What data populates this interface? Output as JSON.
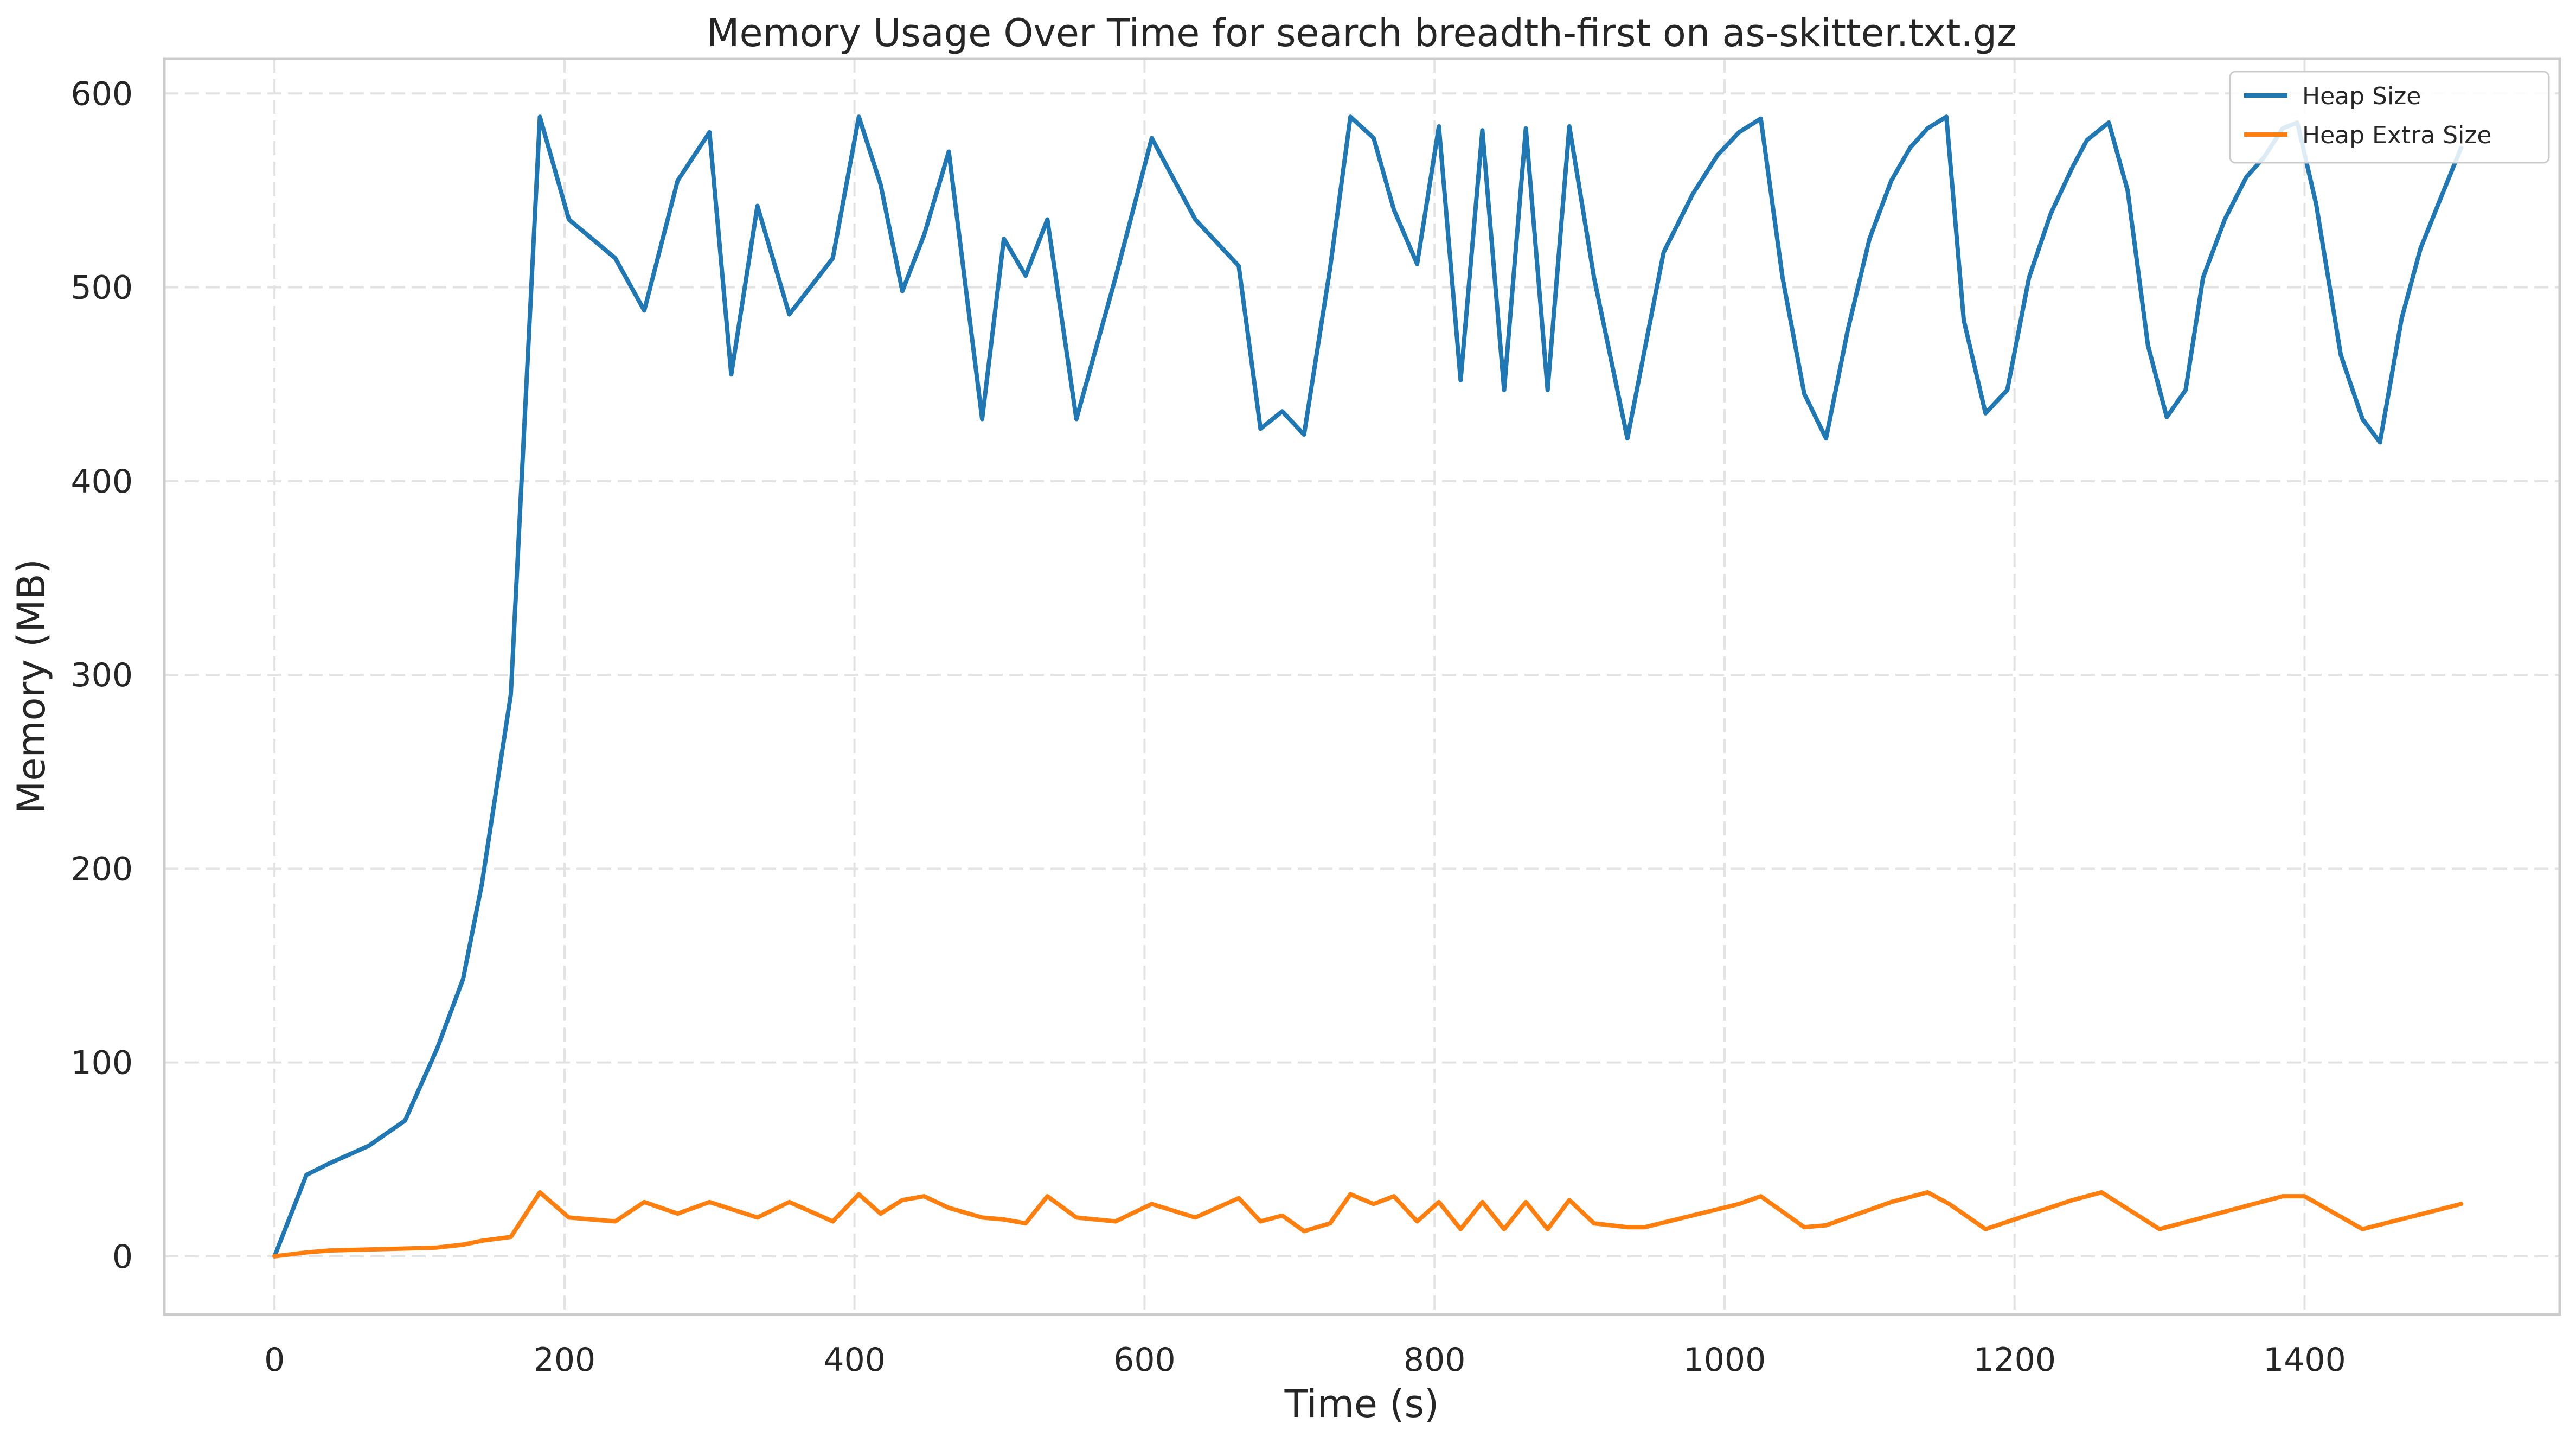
{
  "chart_data": {
    "type": "line",
    "title": "Memory Usage Over Time for search breadth-first on as-skitter.txt.gz",
    "xlabel": "Time (s)",
    "ylabel": "Memory (MB)",
    "xlim": [
      -76,
      1576
    ],
    "ylim": [
      -30,
      618
    ],
    "xticks": [
      0,
      200,
      400,
      600,
      800,
      1000,
      1200,
      1400
    ],
    "yticks": [
      0,
      100,
      200,
      300,
      400,
      500,
      600
    ],
    "grid": true,
    "legend_position": "top-right",
    "series": [
      {
        "name": "Heap Size",
        "color": "#1f77b4",
        "x": [
          0,
          22,
          38,
          65,
          90,
          112,
          130,
          143,
          163,
          183,
          203,
          235,
          255,
          278,
          300,
          315,
          333,
          355,
          385,
          403,
          418,
          433,
          448,
          465,
          488,
          503,
          518,
          533,
          553,
          580,
          605,
          635,
          665,
          680,
          695,
          710,
          728,
          742,
          758,
          772,
          788,
          803,
          818,
          833,
          848,
          863,
          878,
          893,
          910,
          933,
          958,
          978,
          995,
          1010,
          1025,
          1040,
          1055,
          1070,
          1085,
          1100,
          1115,
          1128,
          1140,
          1153,
          1165,
          1180,
          1195,
          1210,
          1225,
          1240,
          1250,
          1265,
          1278,
          1292,
          1305,
          1318,
          1330,
          1345,
          1360,
          1372,
          1385,
          1395,
          1408,
          1425,
          1440,
          1452,
          1467,
          1480,
          1495,
          1508
        ],
        "values": [
          0,
          42,
          48,
          57,
          70,
          107,
          143,
          192,
          290,
          588,
          535,
          515,
          488,
          555,
          580,
          455,
          542,
          486,
          515,
          588,
          553,
          498,
          527,
          570,
          432,
          525,
          506,
          535,
          432,
          505,
          577,
          535,
          511,
          427,
          436,
          424,
          510,
          588,
          577,
          540,
          512,
          583,
          452,
          581,
          447,
          582,
          447,
          583,
          505,
          422,
          518,
          548,
          568,
          580,
          587,
          505,
          445,
          422,
          478,
          525,
          555,
          572,
          582,
          588,
          483,
          435,
          447,
          505,
          538,
          562,
          576,
          585,
          550,
          470,
          433,
          447,
          505,
          535,
          557,
          567,
          582,
          585,
          543,
          465,
          432,
          420,
          484,
          520,
          548,
          572
        ]
      },
      {
        "name": "Heap Extra Size",
        "color": "#ff7f0e",
        "x": [
          0,
          22,
          38,
          65,
          90,
          112,
          130,
          143,
          163,
          183,
          203,
          235,
          255,
          278,
          300,
          333,
          355,
          385,
          403,
          418,
          433,
          448,
          465,
          488,
          503,
          518,
          533,
          553,
          580,
          605,
          635,
          665,
          680,
          695,
          710,
          728,
          742,
          758,
          772,
          788,
          803,
          818,
          833,
          848,
          863,
          878,
          893,
          910,
          933,
          945,
          1010,
          1025,
          1055,
          1070,
          1100,
          1115,
          1140,
          1155,
          1180,
          1240,
          1260,
          1300,
          1330,
          1360,
          1385,
          1400,
          1440,
          1508
        ],
        "values": [
          0,
          2,
          3,
          3.5,
          4,
          4.5,
          6,
          8,
          10,
          33,
          20,
          18,
          28,
          22,
          28,
          20,
          28,
          18,
          32,
          22,
          29,
          31,
          25,
          20,
          19,
          17,
          31,
          20,
          18,
          27,
          20,
          30,
          18,
          21,
          13,
          17,
          32,
          27,
          31,
          18,
          28,
          14,
          28,
          14,
          28,
          14,
          29,
          17,
          15,
          15,
          27,
          31,
          15,
          16,
          24,
          28,
          33,
          27,
          14,
          29,
          33,
          14,
          20,
          26,
          31,
          31,
          14,
          27
        ]
      }
    ]
  }
}
